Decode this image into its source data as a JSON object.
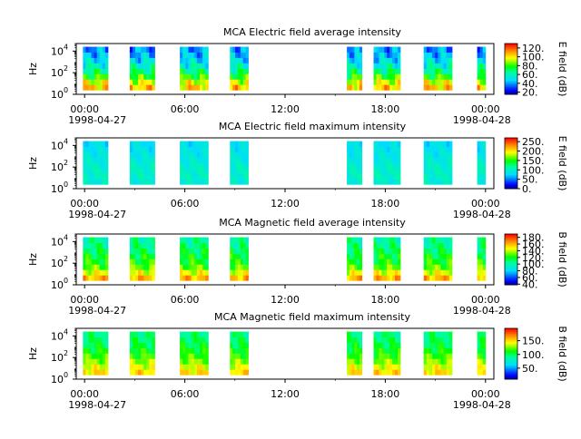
{
  "chart_data": [
    {
      "type": "heatmap",
      "title": "MCA  Electric field average intensity",
      "ylabel": "Hz",
      "ytick_labels": [
        [
          "10",
          "0"
        ],
        [
          "10",
          "2"
        ],
        [
          "10",
          "4"
        ]
      ],
      "ylim_log10": [
        0,
        4.7
      ],
      "xlim_hours": [
        -0.5,
        24.5
      ],
      "xtick_hours": [
        0,
        6,
        12,
        18,
        24
      ],
      "xtick_labels": [
        "00:00",
        "06:00",
        "12:00",
        "18:00",
        "00:00"
      ],
      "date_labels": [
        "1998-04-27",
        "1998-04-28"
      ],
      "colorbar_label": "E field (dB)",
      "colorbar_range": [
        15,
        130
      ],
      "colorbar_ticks": [
        20,
        40,
        60,
        80,
        100,
        120
      ],
      "colorbar_tick_labels": [
        "20.",
        "40.",
        "60.",
        "80.",
        "100.",
        "120."
      ],
      "freq_range_log10": [
        0.4,
        4.4
      ],
      "intervals_hours": [
        [
          -0.1,
          1.4
        ],
        [
          2.7,
          4.2
        ],
        [
          5.7,
          7.4
        ],
        [
          8.7,
          9.8
        ],
        [
          15.7,
          16.6
        ],
        [
          17.3,
          18.9
        ],
        [
          20.3,
          22.0
        ],
        [
          23.5,
          24.0
        ]
      ],
      "level_profile": [
        105,
        95,
        80,
        68,
        58,
        50,
        44,
        40
      ]
    },
    {
      "type": "heatmap",
      "title": "MCA  Electric field maximum intensity",
      "ylabel": "Hz",
      "ytick_labels": [
        [
          "10",
          "0"
        ],
        [
          "10",
          "2"
        ],
        [
          "10",
          "4"
        ]
      ],
      "ylim_log10": [
        0,
        4.7
      ],
      "xlim_hours": [
        -0.5,
        24.5
      ],
      "xtick_hours": [
        0,
        6,
        12,
        18,
        24
      ],
      "xtick_labels": [
        "00:00",
        "06:00",
        "12:00",
        "18:00",
        "00:00"
      ],
      "date_labels": [
        "1998-04-27",
        "1998-04-28"
      ],
      "colorbar_label": "E field (dB)",
      "colorbar_range": [
        0,
        270
      ],
      "colorbar_ticks": [
        0,
        50,
        100,
        150,
        200,
        250
      ],
      "colorbar_tick_labels": [
        "0.",
        "50.",
        "100.",
        "150.",
        "200.",
        "250."
      ],
      "freq_range_log10": [
        0.4,
        4.4
      ],
      "intervals_hours": [
        [
          -0.1,
          1.4
        ],
        [
          2.7,
          4.2
        ],
        [
          5.7,
          7.4
        ],
        [
          8.7,
          9.8
        ],
        [
          15.7,
          16.6
        ],
        [
          17.3,
          18.9
        ],
        [
          20.3,
          22.0
        ],
        [
          23.5,
          24.0
        ]
      ],
      "level_profile": [
        95,
        100,
        100,
        98,
        92,
        88,
        85,
        82
      ]
    },
    {
      "type": "heatmap",
      "title": "MCA  Magnetic field average intensity",
      "ylabel": "Hz",
      "ytick_labels": [
        [
          "10",
          "0"
        ],
        [
          "10",
          "2"
        ],
        [
          "10",
          "4"
        ]
      ],
      "ylim_log10": [
        0,
        4.7
      ],
      "xlim_hours": [
        -0.5,
        24.5
      ],
      "xtick_hours": [
        0,
        6,
        12,
        18,
        24
      ],
      "xtick_labels": [
        "00:00",
        "06:00",
        "12:00",
        "18:00",
        "00:00"
      ],
      "date_labels": [
        "1998-04-27",
        "1998-04-28"
      ],
      "colorbar_label": "B field (dB)",
      "colorbar_range": [
        38,
        190
      ],
      "colorbar_ticks": [
        40,
        60,
        80,
        100,
        120,
        140,
        160,
        180
      ],
      "colorbar_tick_labels": [
        "40.",
        "60.",
        "80.",
        "100.",
        "120.",
        "140.",
        "160.",
        "180."
      ],
      "freq_range_log10": [
        0.4,
        4.4
      ],
      "intervals_hours": [
        [
          -0.1,
          1.4
        ],
        [
          2.7,
          4.2
        ],
        [
          5.7,
          7.4
        ],
        [
          8.7,
          9.8
        ],
        [
          15.7,
          16.6
        ],
        [
          17.3,
          18.9
        ],
        [
          20.3,
          22.0
        ],
        [
          23.5,
          24.0
        ]
      ],
      "level_profile": [
        160,
        145,
        130,
        122,
        118,
        112,
        108,
        104
      ]
    },
    {
      "type": "heatmap",
      "title": "MCA  Magnetic field maximum intensity",
      "ylabel": "Hz",
      "ytick_labels": [
        [
          "10",
          "0"
        ],
        [
          "10",
          "2"
        ],
        [
          "10",
          "4"
        ]
      ],
      "ylim_log10": [
        0,
        4.7
      ],
      "xlim_hours": [
        -0.5,
        24.5
      ],
      "xtick_hours": [
        0,
        6,
        12,
        18,
        24
      ],
      "xtick_labels": [
        "00:00",
        "06:00",
        "12:00",
        "18:00",
        "00:00"
      ],
      "date_labels": [
        "1998-04-27",
        "1998-04-28"
      ],
      "colorbar_label": "B field (dB)",
      "colorbar_range": [
        10,
        195
      ],
      "colorbar_ticks": [
        50,
        100,
        150
      ],
      "colorbar_tick_labels": [
        "50.",
        "100.",
        "150."
      ],
      "freq_range_log10": [
        0.4,
        4.4
      ],
      "intervals_hours": [
        [
          -0.1,
          1.4
        ],
        [
          2.7,
          4.2
        ],
        [
          5.7,
          7.4
        ],
        [
          8.7,
          9.8
        ],
        [
          15.7,
          16.6
        ],
        [
          17.3,
          18.9
        ],
        [
          20.3,
          22.0
        ],
        [
          23.5,
          24.0
        ]
      ],
      "level_profile": [
        150,
        140,
        128,
        118,
        110,
        104,
        100,
        96
      ]
    }
  ]
}
